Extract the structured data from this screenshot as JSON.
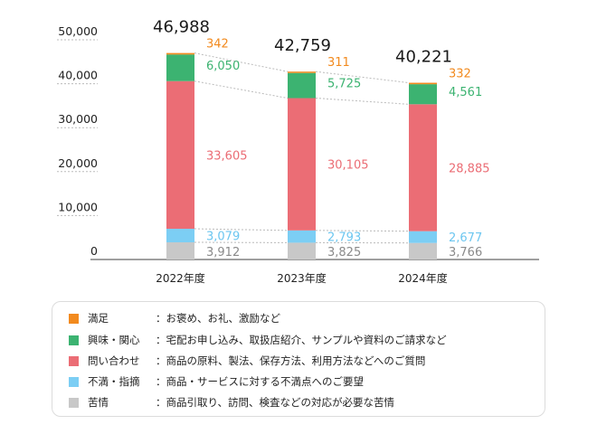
{
  "chart_data": {
    "type": "bar",
    "stacked": true,
    "categories": [
      "2022年度",
      "2023年度",
      "2024年度"
    ],
    "totals": [
      "46,988",
      "42,759",
      "40,221"
    ],
    "series": [
      {
        "name": "苦情",
        "color": "#c8c8c8",
        "label_color": "#8a8a8a",
        "values": [
          3912,
          3825,
          3766
        ],
        "labels": [
          "3,912",
          "3,825",
          "3,766"
        ]
      },
      {
        "name": "不満・指摘",
        "color": "#7ccef4",
        "label_color": "#6cc6f0",
        "values": [
          3079,
          2793,
          2677
        ],
        "labels": [
          "3,079",
          "2,793",
          "2,677"
        ]
      },
      {
        "name": "問い合わせ",
        "color": "#eb6d75",
        "label_color": "#eb6d75",
        "values": [
          33605,
          30105,
          28885
        ],
        "labels": [
          "33,605",
          "30,105",
          "28,885"
        ]
      },
      {
        "name": "興味・関心",
        "color": "#3cb371",
        "label_color": "#3cb371",
        "values": [
          6050,
          5725,
          4561
        ],
        "labels": [
          "6,050",
          "5,725",
          "4,561"
        ]
      },
      {
        "name": "満足",
        "color": "#f28a1e",
        "label_color": "#f28a1e",
        "values": [
          342,
          311,
          332
        ],
        "labels": [
          "342",
          "311",
          "332"
        ]
      }
    ],
    "yticks": [
      "0",
      "10,000",
      "20,000",
      "30,000",
      "40,000",
      "50,000"
    ],
    "ylim": [
      0,
      50000
    ],
    "grid": true
  },
  "legend": [
    {
      "label": "満足",
      "desc": "：お褒め、お礼、激励など",
      "color": "#f28a1e"
    },
    {
      "label": "興味・関心",
      "desc": "：宅配お申し込み、取扱店紹介、サンプルや資料のご請求など",
      "color": "#3cb371"
    },
    {
      "label": "問い合わせ",
      "desc": "：商品の原料、製法、保存方法、利用方法などへのご質問",
      "color": "#eb6d75"
    },
    {
      "label": "不満・指摘",
      "desc": "：商品・サービスに対する不満点へのご要望",
      "color": "#7ccef4"
    },
    {
      "label": "苦情",
      "desc": "：商品引取り、訪問、検査などの対応が必要な苦情",
      "color": "#c8c8c8"
    }
  ]
}
